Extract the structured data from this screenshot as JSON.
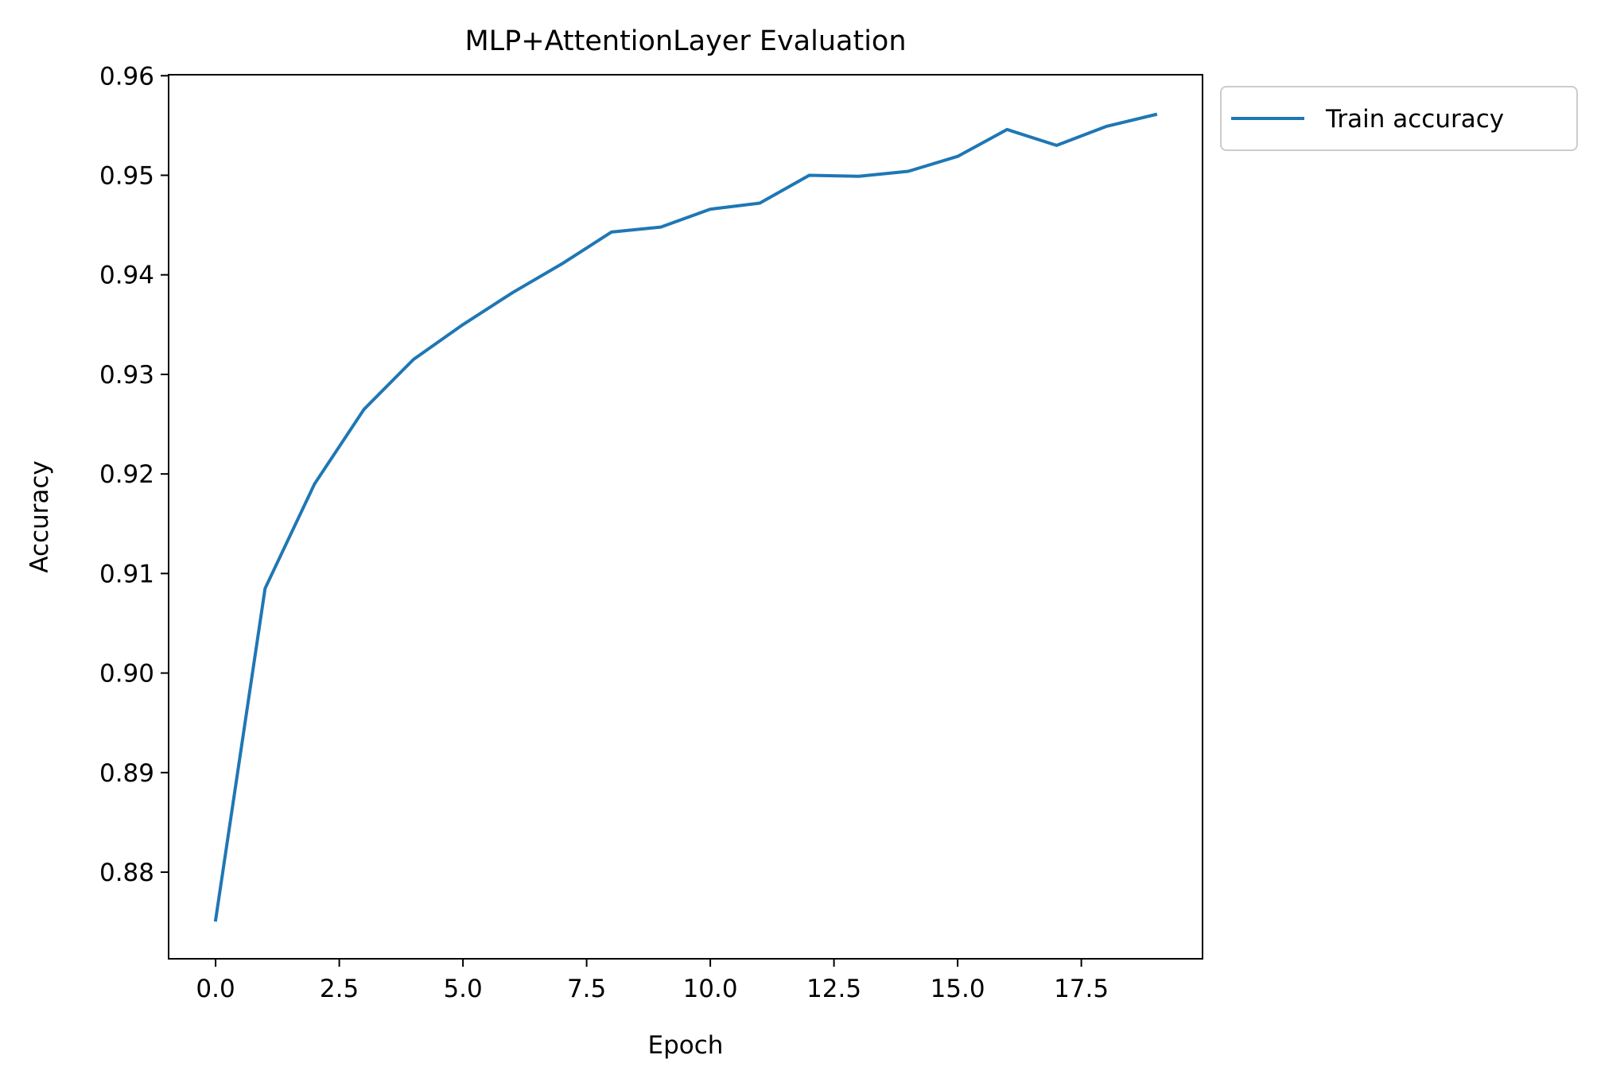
{
  "chart_data": {
    "type": "line",
    "title": "MLP+AttentionLayer Evaluation",
    "xlabel": "Epoch",
    "ylabel": "Accuracy",
    "xlim": [
      -0.95,
      19.95
    ],
    "ylim": [
      0.8713,
      0.9601
    ],
    "xticks": [
      0.0,
      2.5,
      5.0,
      7.5,
      10.0,
      12.5,
      15.0,
      17.5
    ],
    "xtick_labels": [
      "0.0",
      "2.5",
      "5.0",
      "7.5",
      "10.0",
      "12.5",
      "15.0",
      "17.5"
    ],
    "yticks": [
      0.88,
      0.89,
      0.9,
      0.91,
      0.92,
      0.93,
      0.94,
      0.95,
      0.96
    ],
    "ytick_labels": [
      "0.88",
      "0.89",
      "0.90",
      "0.91",
      "0.92",
      "0.93",
      "0.94",
      "0.95",
      "0.96"
    ],
    "grid": false,
    "legend_position": "outside-top-right",
    "series": [
      {
        "name": "Train accuracy",
        "color": "#1f77b4",
        "x": [
          0,
          1,
          2,
          3,
          4,
          5,
          6,
          7,
          8,
          9,
          10,
          11,
          12,
          13,
          14,
          15,
          16,
          17,
          18,
          19
        ],
        "values": [
          0.8752,
          0.9085,
          0.919,
          0.9265,
          0.9315,
          0.935,
          0.9382,
          0.9411,
          0.9443,
          0.9448,
          0.9466,
          0.9472,
          0.95,
          0.9499,
          0.9504,
          0.9519,
          0.9546,
          0.953,
          0.9549,
          0.9561
        ]
      }
    ]
  }
}
